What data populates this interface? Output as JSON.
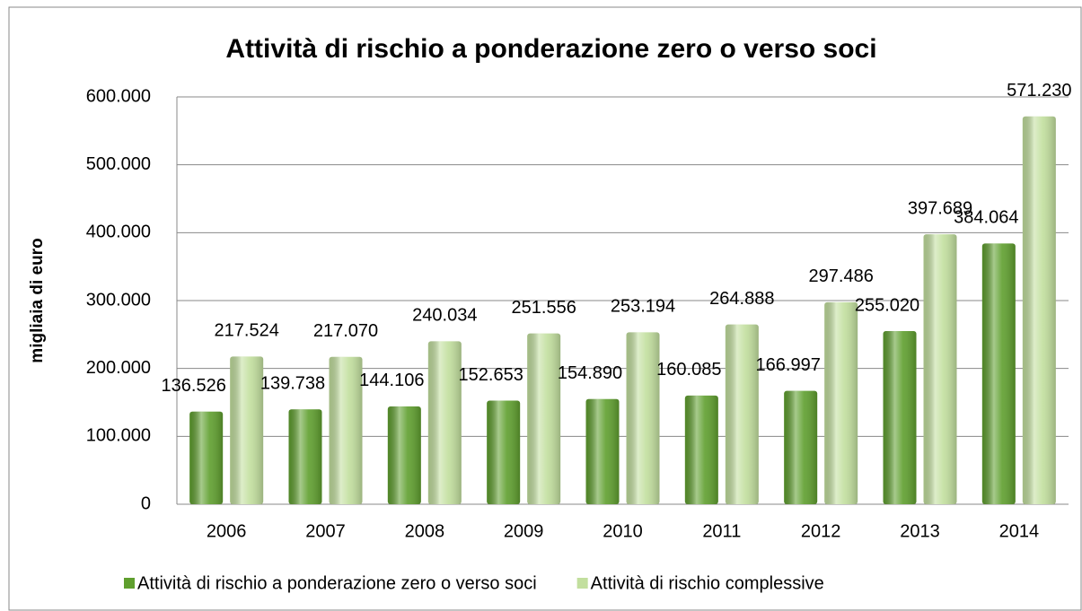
{
  "chart_data": {
    "type": "bar",
    "title": "Attività di rischio a ponderazione zero o verso soci",
    "y_label": "migliaia di euro",
    "categories": [
      "2006",
      "2007",
      "2008",
      "2009",
      "2010",
      "2011",
      "2012",
      "2013",
      "2014"
    ],
    "series": [
      {
        "name": "Attività di rischio a ponderazione zero o verso soci",
        "color": "#5f9f2e",
        "values": [
          136526,
          139738,
          144106,
          152653,
          154890,
          160085,
          166997,
          255020,
          384064
        ],
        "value_labels": [
          "136.526",
          "139.738",
          "144.106",
          "152.653",
          "154.890",
          "160.085",
          "166.997",
          "255.020",
          "384.064"
        ]
      },
      {
        "name": "Attività di rischio complessive",
        "color": "#c2df9e",
        "values": [
          217524,
          217070,
          240034,
          251556,
          253194,
          264888,
          297486,
          397689,
          571230
        ],
        "value_labels": [
          "217.524",
          "217.070",
          "240.034",
          "251.556",
          "253.194",
          "264.888",
          "297.486",
          "397.689",
          "571.230"
        ]
      }
    ],
    "ylim": [
      0,
      600000
    ],
    "yticks": [
      0,
      {
        "value": 100000,
        "label": "100.000"
      },
      {
        "value": 200000,
        "label": "200.000"
      },
      {
        "value": 300000,
        "label": "300.000"
      },
      {
        "value": 400000,
        "label": "400.000"
      },
      {
        "value": 500000,
        "label": "500.000"
      },
      {
        "value": 600000,
        "label": "600.000"
      }
    ],
    "grid": true,
    "legend": "bottom"
  }
}
